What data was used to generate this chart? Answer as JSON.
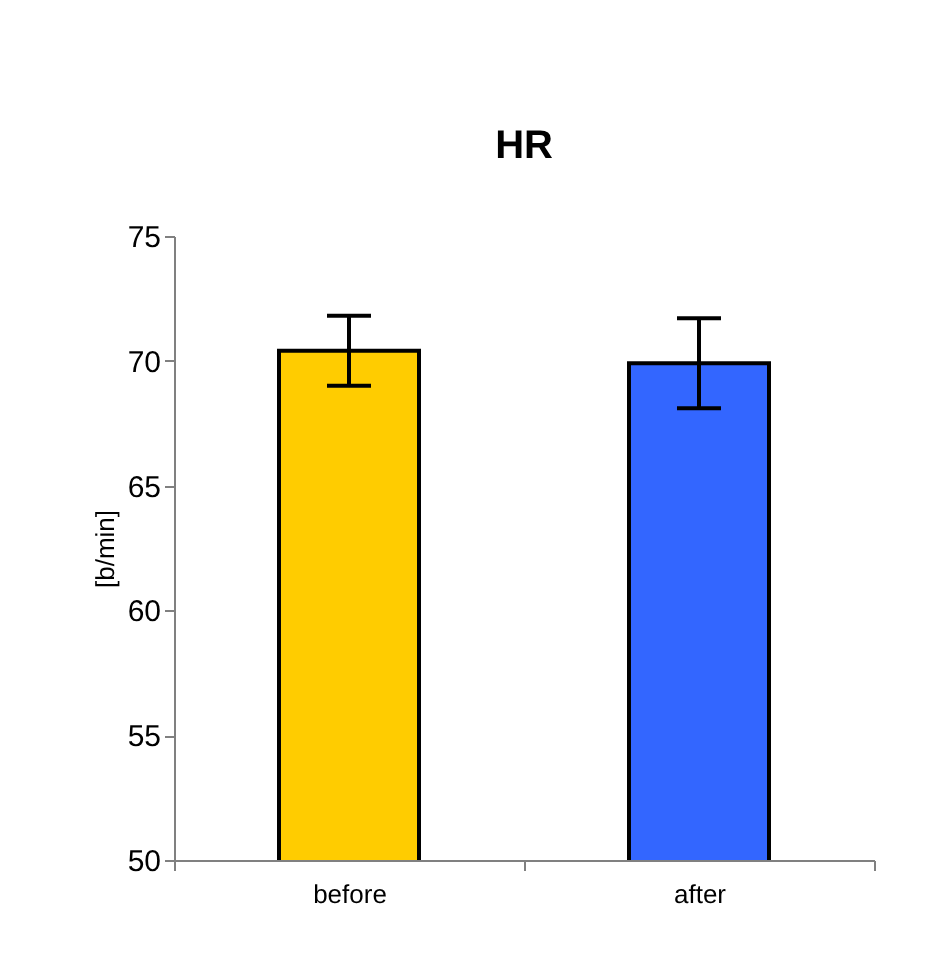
{
  "chart_data": {
    "type": "bar",
    "title": "HR",
    "ylabel": "[b/min]",
    "categories": [
      "before",
      "after"
    ],
    "values": [
      70.4,
      69.9
    ],
    "colors": [
      "#ffcc00",
      "#3366ff"
    ],
    "errors": [
      [
        69.0,
        71.8
      ],
      [
        68.1,
        71.7
      ]
    ],
    "ylim": [
      50,
      75
    ],
    "yticks": [
      50,
      55,
      60,
      65,
      70,
      75
    ],
    "grid": false,
    "legend": false
  }
}
